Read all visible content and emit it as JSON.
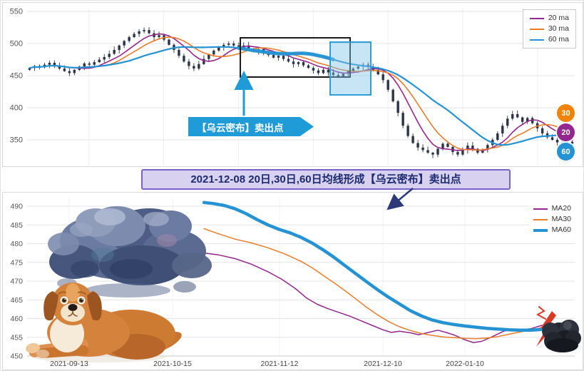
{
  "top_annotations": {
    "sell_label": "【乌云密布】卖出点",
    "badges": [
      {
        "label": "30",
        "color": "#f08300"
      },
      {
        "label": "20",
        "color": "#93278f"
      },
      {
        "label": "60",
        "color": "#2593d3"
      }
    ]
  },
  "banner": {
    "text": "2021-12-08 20日,30日,60日均线形成【乌云密布】卖出点"
  },
  "chart_data": [
    {
      "type": "candlestick",
      "title": "",
      "ylim": [
        310,
        555
      ],
      "y_ticks": [
        550,
        500,
        450,
        400,
        350
      ],
      "grid": true,
      "legend_position": "top-right",
      "legend": [
        {
          "label": "20 ma",
          "color": "#93278f"
        },
        {
          "label": "30 ma",
          "color": "#e87d2b"
        },
        {
          "label": "60 ma",
          "color": "#2593d3"
        }
      ],
      "candle_color": "#2b3446",
      "close": [
        462,
        465,
        463,
        467,
        470,
        466,
        461,
        457,
        454,
        459,
        464,
        469,
        467,
        471,
        475,
        479,
        484,
        490,
        497,
        504,
        510,
        515,
        519,
        521,
        516,
        510,
        513,
        506,
        498,
        490,
        481,
        472,
        465,
        461,
        468,
        476,
        483,
        489,
        494,
        498,
        500,
        497,
        494,
        497,
        492,
        488,
        491,
        486,
        482,
        478,
        481,
        476,
        472,
        468,
        471,
        466,
        462,
        458,
        454,
        459,
        455,
        451,
        449,
        453,
        457,
        461,
        464,
        467,
        464,
        459,
        452,
        443,
        428,
        410,
        392,
        372,
        356,
        345,
        338,
        334,
        330,
        327,
        336,
        344,
        339,
        331,
        327,
        334,
        341,
        336,
        330,
        335,
        342,
        350,
        360,
        372,
        383,
        390,
        385,
        378,
        384,
        376,
        368,
        360,
        354,
        350,
        346,
        343,
        347,
        344
      ],
      "ma_series": [
        {
          "name": "20 ma",
          "color": "#93278f",
          "window": 7,
          "width": 1.6
        },
        {
          "name": "30 ma",
          "color": "#e87d2b",
          "window": 11,
          "width": 1.6
        },
        {
          "name": "60 ma",
          "color": "#2593d3",
          "window": 21,
          "width": 2.2
        }
      ],
      "highlight_segment": {
        "series": "60 ma",
        "x_from": 0.38,
        "x_to": 0.56,
        "width": 5
      }
    },
    {
      "type": "line",
      "title": "",
      "ylim": [
        448,
        493
      ],
      "y_ticks": [
        490,
        485,
        480,
        475,
        470,
        465,
        460,
        455,
        450
      ],
      "x_labels": [
        "2021-09-13",
        "2021-10-15",
        "2021-11-12",
        "2021-12-10",
        "2022-01-10"
      ],
      "grid": true,
      "legend_position": "top-right",
      "series": [
        {
          "name": "MA20",
          "color": "#93278f",
          "width": 1.5,
          "points": [
            [
              0.323,
              477.5
            ],
            [
              0.35,
              477
            ],
            [
              0.38,
              476
            ],
            [
              0.41,
              474.5
            ],
            [
              0.44,
              472.5
            ],
            [
              0.465,
              470.5
            ],
            [
              0.49,
              468
            ],
            [
              0.51,
              465.5
            ],
            [
              0.53,
              463.8
            ],
            [
              0.55,
              462.6
            ],
            [
              0.57,
              461.6
            ],
            [
              0.59,
              460.6
            ],
            [
              0.61,
              459.4
            ],
            [
              0.63,
              458.2
            ],
            [
              0.65,
              457
            ],
            [
              0.665,
              456.3
            ],
            [
              0.68,
              456.6
            ],
            [
              0.7,
              456.2
            ],
            [
              0.715,
              455.7
            ],
            [
              0.73,
              456.2
            ],
            [
              0.75,
              456.9
            ],
            [
              0.765,
              456.3
            ],
            [
              0.78,
              455.6
            ],
            [
              0.8,
              454.3
            ],
            [
              0.815,
              453.6
            ],
            [
              0.83,
              453.9
            ],
            [
              0.85,
              455.2
            ],
            [
              0.87,
              456.6
            ],
            [
              0.885,
              457.2
            ],
            [
              0.9,
              457
            ],
            [
              0.92,
              457.3
            ],
            [
              0.94,
              458.2
            ]
          ]
        },
        {
          "name": "MA30",
          "color": "#e87d2b",
          "width": 1.5,
          "points": [
            [
              0.323,
              484
            ],
            [
              0.35,
              482.6
            ],
            [
              0.38,
              481.2
            ],
            [
              0.41,
              480.2
            ],
            [
              0.44,
              478.9
            ],
            [
              0.47,
              477.3
            ],
            [
              0.5,
              475.3
            ],
            [
              0.52,
              473.6
            ],
            [
              0.54,
              471.6
            ],
            [
              0.56,
              469.6
            ],
            [
              0.58,
              467.5
            ],
            [
              0.6,
              465.3
            ],
            [
              0.62,
              463
            ],
            [
              0.64,
              461
            ],
            [
              0.66,
              459.2
            ],
            [
              0.68,
              457.8
            ],
            [
              0.7,
              456.8
            ],
            [
              0.72,
              456
            ],
            [
              0.74,
              455.5
            ],
            [
              0.76,
              455.1
            ],
            [
              0.78,
              454.9
            ],
            [
              0.8,
              454.7
            ],
            [
              0.82,
              454.6
            ],
            [
              0.84,
              454.8
            ],
            [
              0.86,
              455.2
            ],
            [
              0.88,
              455.8
            ],
            [
              0.9,
              456.4
            ],
            [
              0.92,
              457
            ],
            [
              0.94,
              457.6
            ]
          ]
        },
        {
          "name": "MA60",
          "color": "#2593d3",
          "width": 4.5,
          "points": [
            [
              0.323,
              491
            ],
            [
              0.34,
              490.7
            ],
            [
              0.36,
              490.2
            ],
            [
              0.38,
              489.3
            ],
            [
              0.4,
              488
            ],
            [
              0.42,
              486.4
            ],
            [
              0.44,
              485
            ],
            [
              0.46,
              483.8
            ],
            [
              0.48,
              482.9
            ],
            [
              0.5,
              481.7
            ],
            [
              0.52,
              480.2
            ],
            [
              0.54,
              478.4
            ],
            [
              0.56,
              476.4
            ],
            [
              0.58,
              474.2
            ],
            [
              0.6,
              472
            ],
            [
              0.62,
              469.8
            ],
            [
              0.64,
              467.7
            ],
            [
              0.66,
              465.7
            ],
            [
              0.68,
              463.9
            ],
            [
              0.7,
              462.1
            ],
            [
              0.72,
              460.7
            ],
            [
              0.74,
              459.6
            ],
            [
              0.76,
              458.9
            ],
            [
              0.78,
              458.4
            ],
            [
              0.8,
              458
            ],
            [
              0.82,
              457.7
            ],
            [
              0.84,
              457.4
            ],
            [
              0.86,
              457.2
            ],
            [
              0.88,
              457
            ],
            [
              0.9,
              456.9
            ],
            [
              0.92,
              456.9
            ],
            [
              0.94,
              457.1
            ]
          ]
        }
      ]
    }
  ]
}
